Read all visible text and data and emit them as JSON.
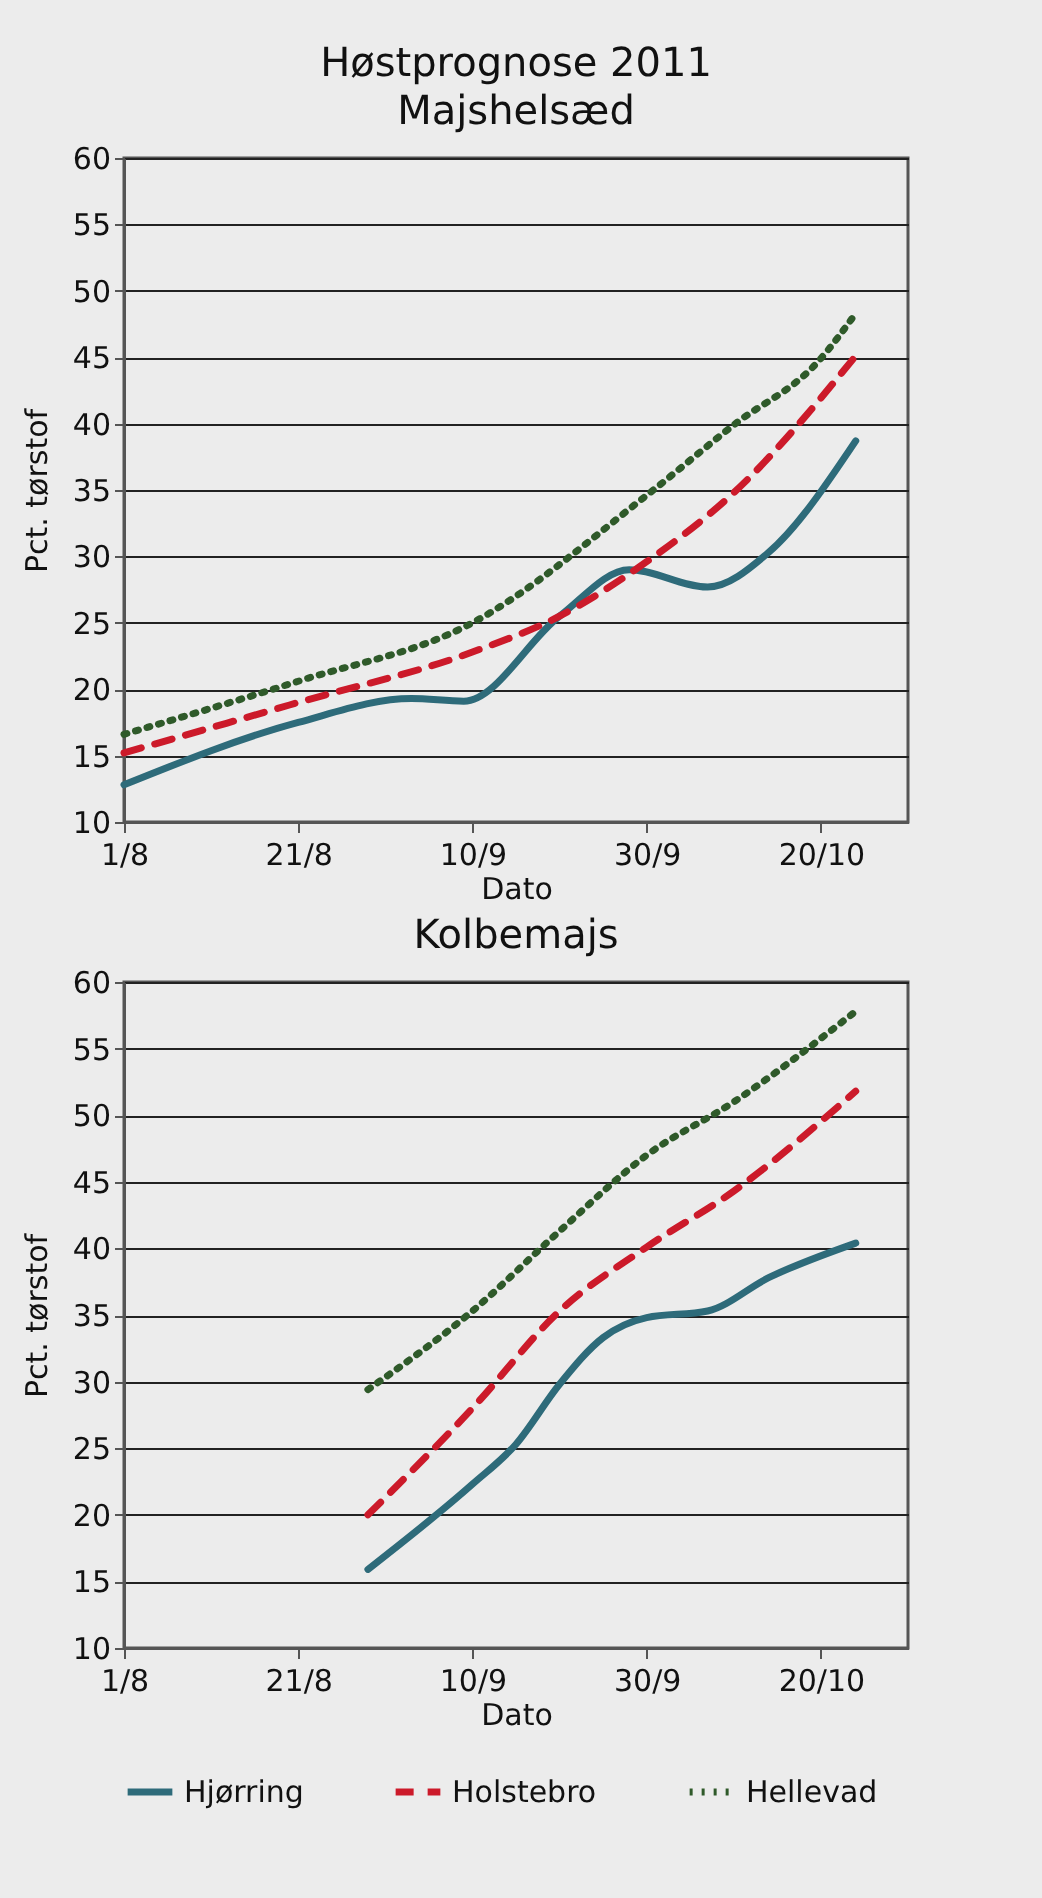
{
  "chart_data": [
    {
      "type": "line",
      "title": "Høstprognose 2011",
      "subtitle": "Majshelsæd",
      "xlabel": "Dato",
      "ylabel": "Pct. tørstof",
      "xlim": [
        "--08-01",
        "--10-30"
      ],
      "xticks": [
        {
          "value": "--08-01",
          "label": "1/8"
        },
        {
          "value": "--08-21",
          "label": "21/8"
        },
        {
          "value": "--09-10",
          "label": "10/9"
        },
        {
          "value": "--09-30",
          "label": "30/9"
        },
        {
          "value": "--10-20",
          "label": "20/10"
        }
      ],
      "ylim": [
        10,
        60
      ],
      "yticks": [
        10,
        15,
        20,
        25,
        30,
        35,
        40,
        45,
        50,
        55,
        60
      ],
      "grid": "y",
      "legend": false,
      "series": [
        {
          "color": "#2e6b7a",
          "line_style": "solid",
          "x": [
            "--08-01",
            "--08-21",
            "--09-03",
            "--09-09",
            "--09-20",
            "--09-28",
            "--10-07",
            "--10-14",
            "--10-24"
          ],
          "values": [
            12.8,
            17.5,
            19.3,
            19.1,
            25.5,
            29.0,
            27.7,
            30.3,
            38.7
          ]
        },
        {
          "color": "#cc1a2a",
          "line_style": "dashed",
          "x": [
            "--08-01",
            "--08-21",
            "--09-10",
            "--09-20",
            "--09-30",
            "--10-10",
            "--10-24"
          ],
          "values": [
            15.2,
            19.0,
            22.8,
            25.5,
            29.6,
            34.8,
            45.1
          ]
        },
        {
          "color": "#2f5a2a",
          "line_style": "dotted",
          "x": [
            "--08-01",
            "--08-21",
            "--09-10",
            "--09-30",
            "--10-10",
            "--10-20",
            "--10-24"
          ],
          "values": [
            16.6,
            20.6,
            25.0,
            34.6,
            39.9,
            44.9,
            48.3
          ]
        }
      ]
    },
    {
      "type": "line",
      "title": "Kolbemajs",
      "xlabel": "Dato",
      "ylabel": "Pct. tørstof",
      "xlim": [
        "--08-01",
        "--10-30"
      ],
      "xticks": [
        {
          "value": "--08-01",
          "label": "1/8"
        },
        {
          "value": "--08-21",
          "label": "21/8"
        },
        {
          "value": "--09-10",
          "label": "10/9"
        },
        {
          "value": "--09-30",
          "label": "30/9"
        },
        {
          "value": "--10-20",
          "label": "20/10"
        }
      ],
      "ylim": [
        10,
        60
      ],
      "yticks": [
        10,
        15,
        20,
        25,
        30,
        35,
        40,
        45,
        50,
        55,
        60
      ],
      "grid": "y",
      "legend": "bottom",
      "series": [
        {
          "name": "Hjørring",
          "color": "#2e6b7a",
          "line_style": "solid",
          "x": [
            "--08-29",
            "--09-10",
            "--09-15",
            "--09-20",
            "--09-25",
            "--09-30",
            "--10-07",
            "--10-14",
            "--10-24"
          ],
          "values": [
            15.9,
            22.3,
            25.3,
            29.8,
            33.3,
            34.8,
            35.3,
            37.8,
            40.4
          ]
        },
        {
          "name": "Holstebro",
          "color": "#cc1a2a",
          "line_style": "dashed",
          "x": [
            "--08-29",
            "--09-10",
            "--09-20",
            "--09-30",
            "--10-10",
            "--10-24"
          ],
          "values": [
            20.0,
            28.0,
            35.3,
            40.1,
            44.3,
            51.8
          ]
        },
        {
          "name": "Hellevad",
          "color": "#2f5a2a",
          "line_style": "dotted",
          "x": [
            "--08-29",
            "--09-10",
            "--09-20",
            "--09-30",
            "--10-10",
            "--10-24"
          ],
          "values": [
            29.4,
            35.3,
            41.3,
            47.0,
            51.0,
            57.8
          ]
        }
      ]
    }
  ]
}
